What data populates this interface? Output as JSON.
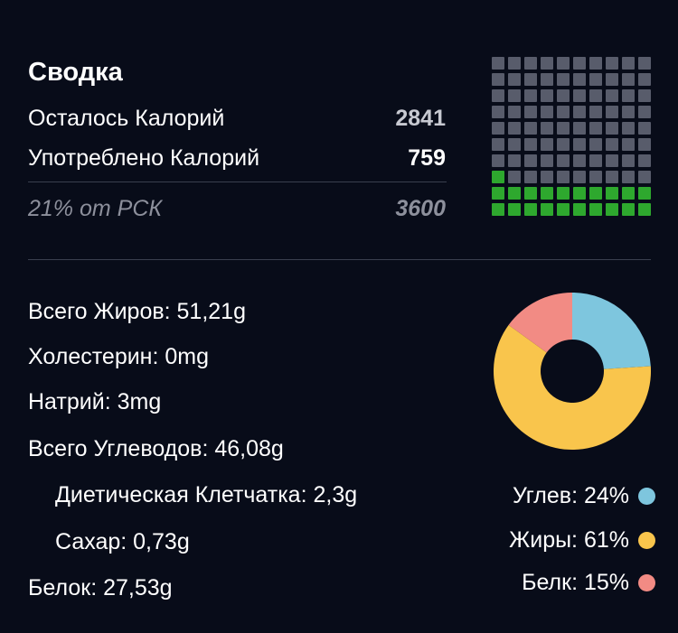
{
  "summary": {
    "title": "Сводка",
    "remaining_label": "Осталось Калорий",
    "remaining_value": "2841",
    "consumed_label": "Употреблено Калорий",
    "consumed_value": "759",
    "rdi_label": "21% от РСК",
    "rdi_value": "3600",
    "grid": {
      "total_cells": 100,
      "filled_fraction": 0.21,
      "filled_color": "#2ea82e",
      "empty_color": "#585c6b"
    }
  },
  "nutrients": {
    "fat": "Всего Жиров: 51,21g",
    "cholesterol": "Холестерин: 0mg",
    "sodium": "Натрий: 3mg",
    "carbs": "Всего Углеводов: 46,08g",
    "fiber": "Диетическая Клетчатка: 2,3g",
    "sugar": "Сахар: 0,73g",
    "protein": "Белок: 27,53g"
  },
  "macros": [
    {
      "label": "Углев: 24%",
      "percent": 24,
      "color": "#7ec6de"
    },
    {
      "label": "Жиры: 61%",
      "percent": 61,
      "color": "#f9c54c"
    },
    {
      "label": "Белк: 15%",
      "percent": 15,
      "color": "#f28b84"
    }
  ]
}
